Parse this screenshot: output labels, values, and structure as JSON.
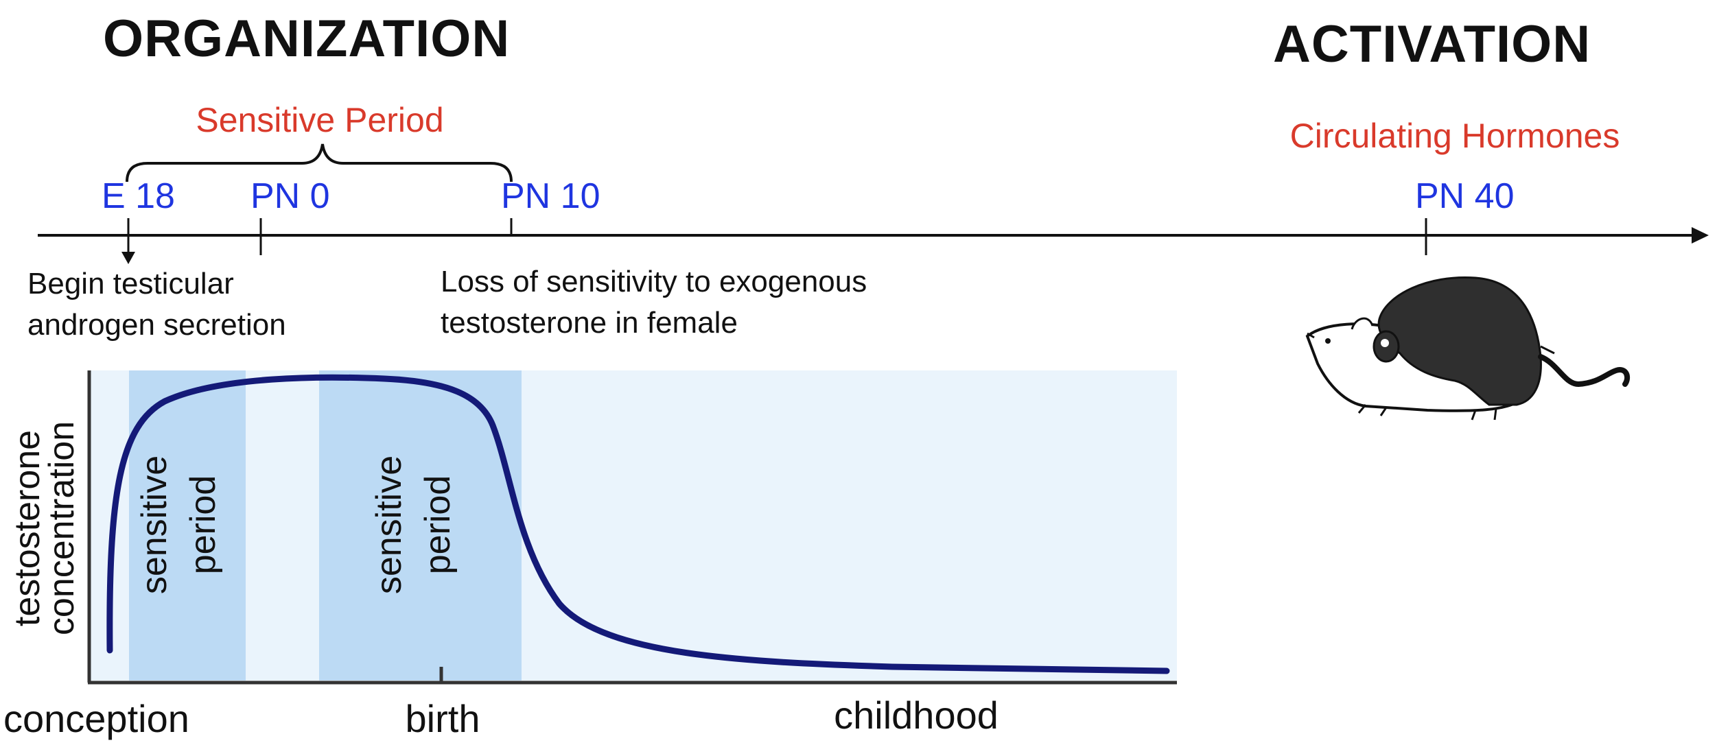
{
  "headings": {
    "organization": "ORGANIZATION",
    "activation": "ACTIVATION",
    "sensitive_period": "Sensitive Period",
    "circulating_hormones": "Circulating Hormones"
  },
  "timeline": {
    "e18": "E 18",
    "pn0": "PN 0",
    "pn10": "PN 10",
    "pn40": "PN 40"
  },
  "annotations": {
    "begin_line1": "Begin testicular",
    "begin_line2": "androgen secretion",
    "loss_line1": "Loss of sensitivity to exogenous",
    "loss_line2": "testosterone in female"
  },
  "graph": {
    "y_axis_line1": "testosterone",
    "y_axis_line2": "concentration",
    "band1_line1": "sensitive",
    "band1_line2": "period",
    "band2_line1": "sensitive",
    "band2_line2": "period",
    "x_conception": "conception",
    "x_birth": "birth",
    "x_childhood": "childhood"
  },
  "colors": {
    "heading_black": "#111111",
    "accent_red": "#d93a2b",
    "timeline_blue": "#1f35e0",
    "curve_navy": "#141a78",
    "band_blue": "#bcdaf4",
    "bg_light_blue": "#eaf4fc"
  },
  "icons": {
    "mice": "mating-mice-illustration"
  }
}
